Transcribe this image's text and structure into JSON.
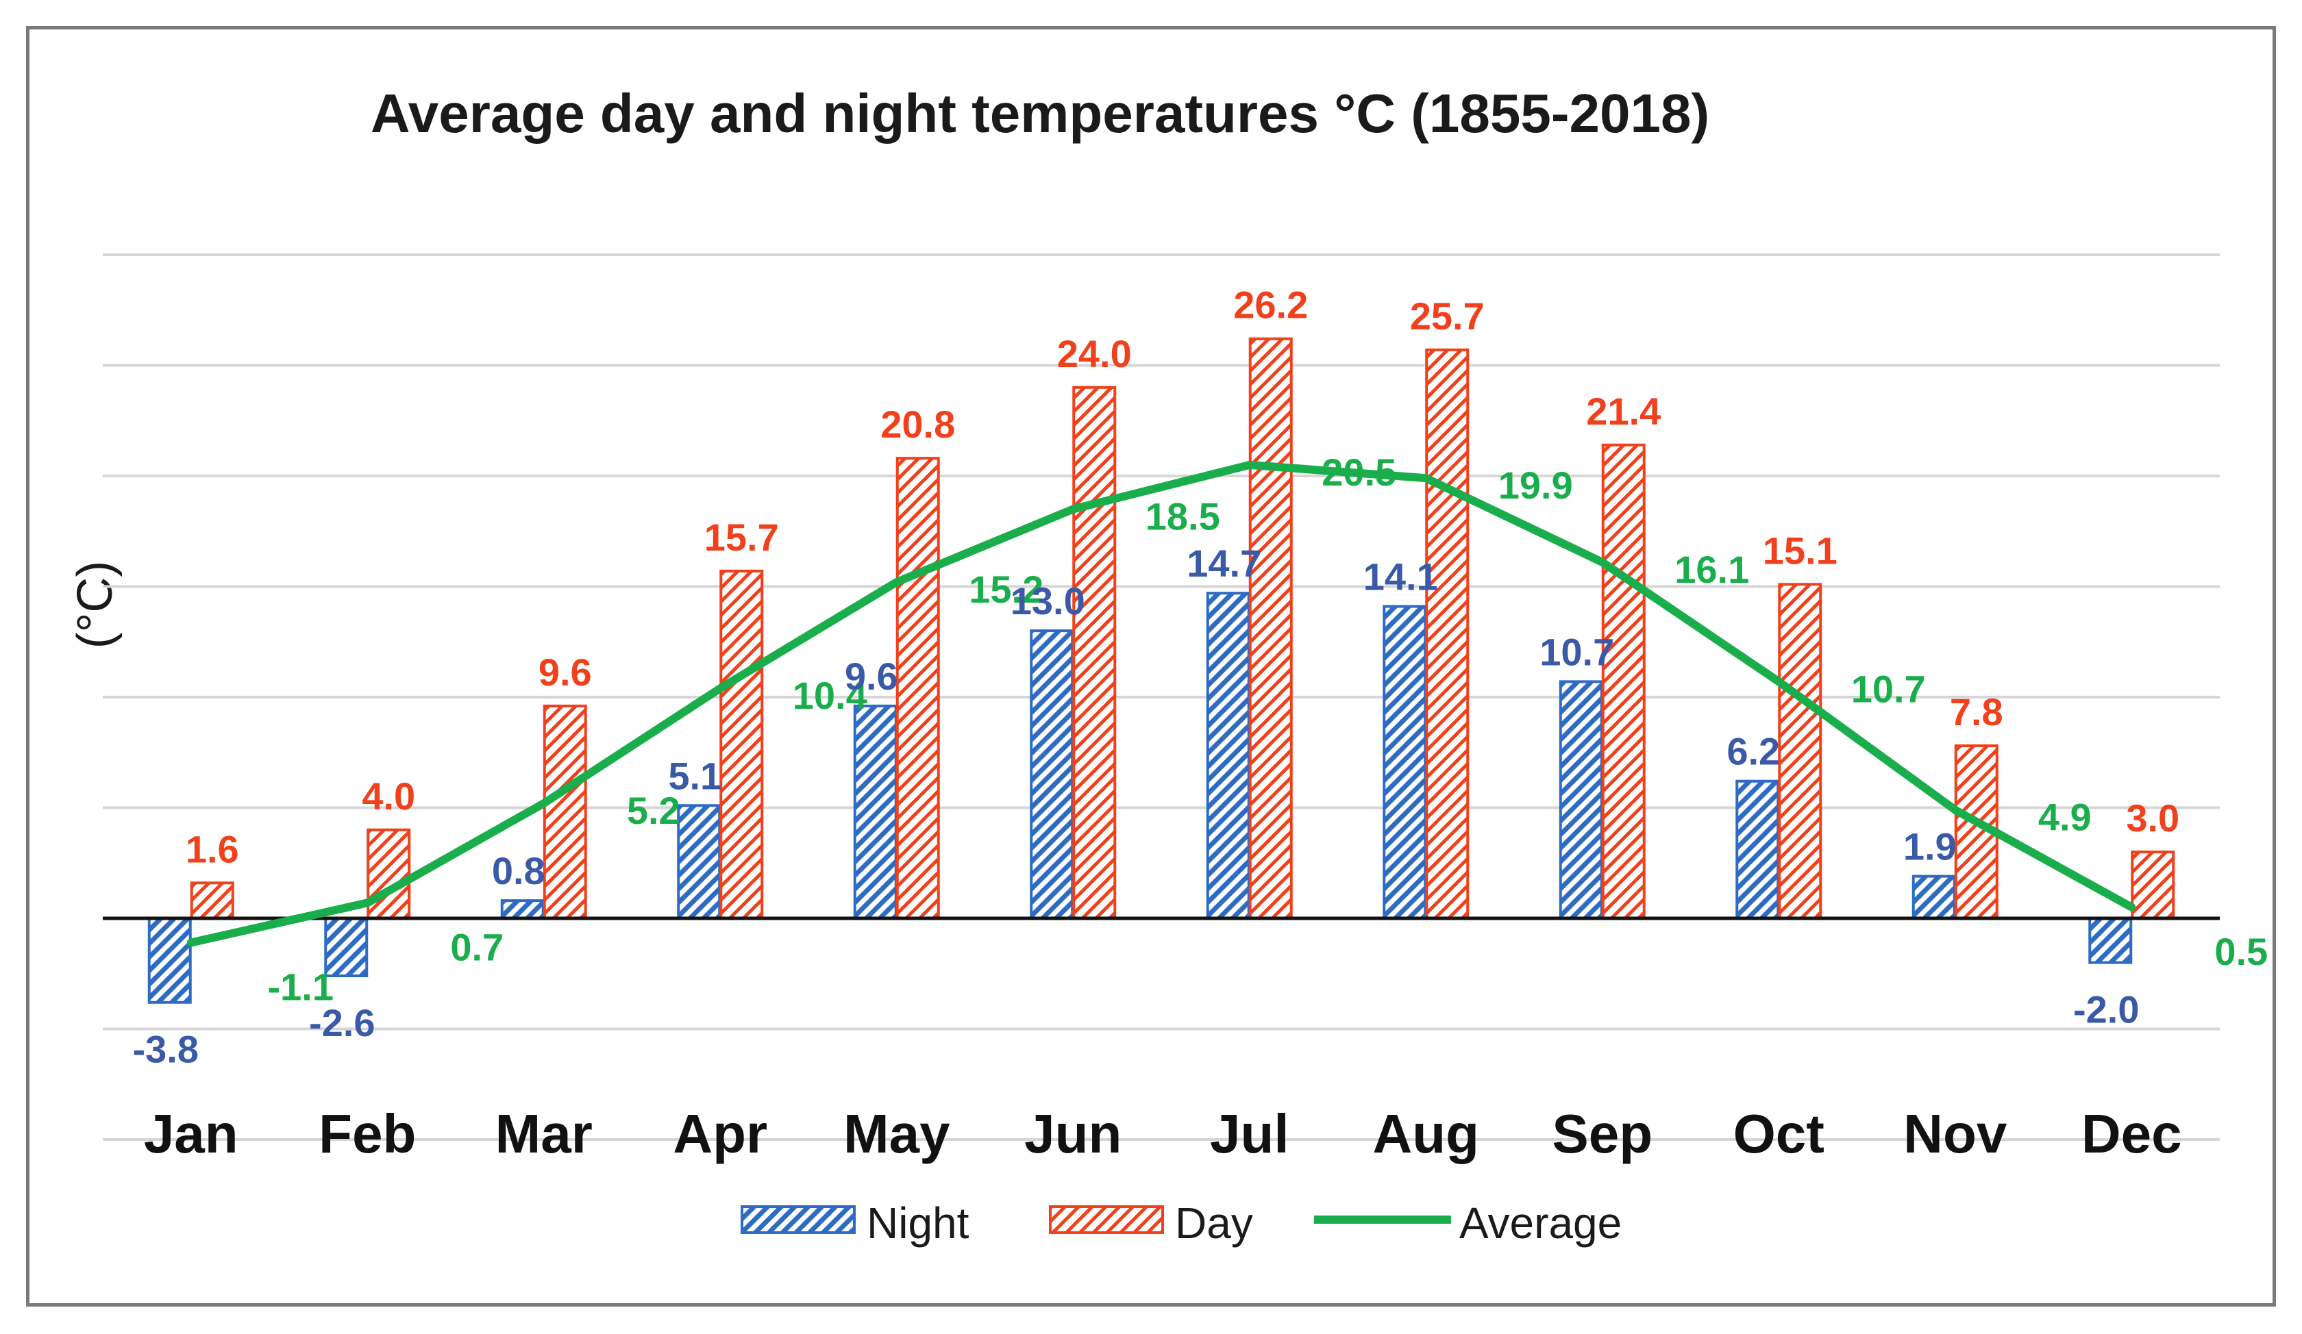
{
  "chart_data": {
    "type": "bar",
    "title": "Average day and night temperatures °C (1855-2018)",
    "xlabel": "",
    "ylabel": "(°C)",
    "ylim": [
      -10,
      30
    ],
    "grid": true,
    "legend_position": "bottom",
    "categories": [
      "Jan",
      "Feb",
      "Mar",
      "Apr",
      "May",
      "Jun",
      "Jul",
      "Aug",
      "Sep",
      "Oct",
      "Nov",
      "Dec"
    ],
    "series": [
      {
        "name": "Night",
        "type": "bar",
        "color": "#2e6cc4",
        "label_color": "#3a5aa8",
        "values": [
          -3.8,
          -2.6,
          0.8,
          5.1,
          9.6,
          13.0,
          14.7,
          14.1,
          10.7,
          6.2,
          1.9,
          -2.0
        ],
        "labels": [
          "-3.8",
          "-2.6",
          "0.8",
          "5.1",
          "9.6",
          "13.0",
          "14.7",
          "14.1",
          "10.7",
          "6.2",
          "1.9",
          "-2.0"
        ]
      },
      {
        "name": "Day",
        "type": "bar",
        "color": "#f0401c",
        "label_color": "#f0401c",
        "values": [
          1.6,
          4.0,
          9.6,
          15.7,
          20.8,
          24.0,
          26.2,
          25.7,
          21.4,
          15.1,
          7.8,
          3.0
        ],
        "labels": [
          "1.6",
          "4.0",
          "9.6",
          "15.7",
          "20.8",
          "24.0",
          "26.2",
          "25.7",
          "21.4",
          "15.1",
          "7.8",
          "3.0"
        ]
      },
      {
        "name": "Average",
        "type": "line",
        "color": "#1aad4b",
        "label_color": "#1aad4b",
        "values": [
          -1.1,
          0.7,
          5.2,
          10.4,
          15.2,
          18.5,
          20.5,
          19.9,
          16.1,
          10.7,
          4.9,
          0.5
        ],
        "labels": [
          "-1.1",
          "0.7",
          "5.2",
          "10.4",
          "15.2",
          "18.5",
          "20.5",
          "19.9",
          "16.1",
          "10.7",
          "4.9",
          "0.5"
        ]
      }
    ]
  }
}
